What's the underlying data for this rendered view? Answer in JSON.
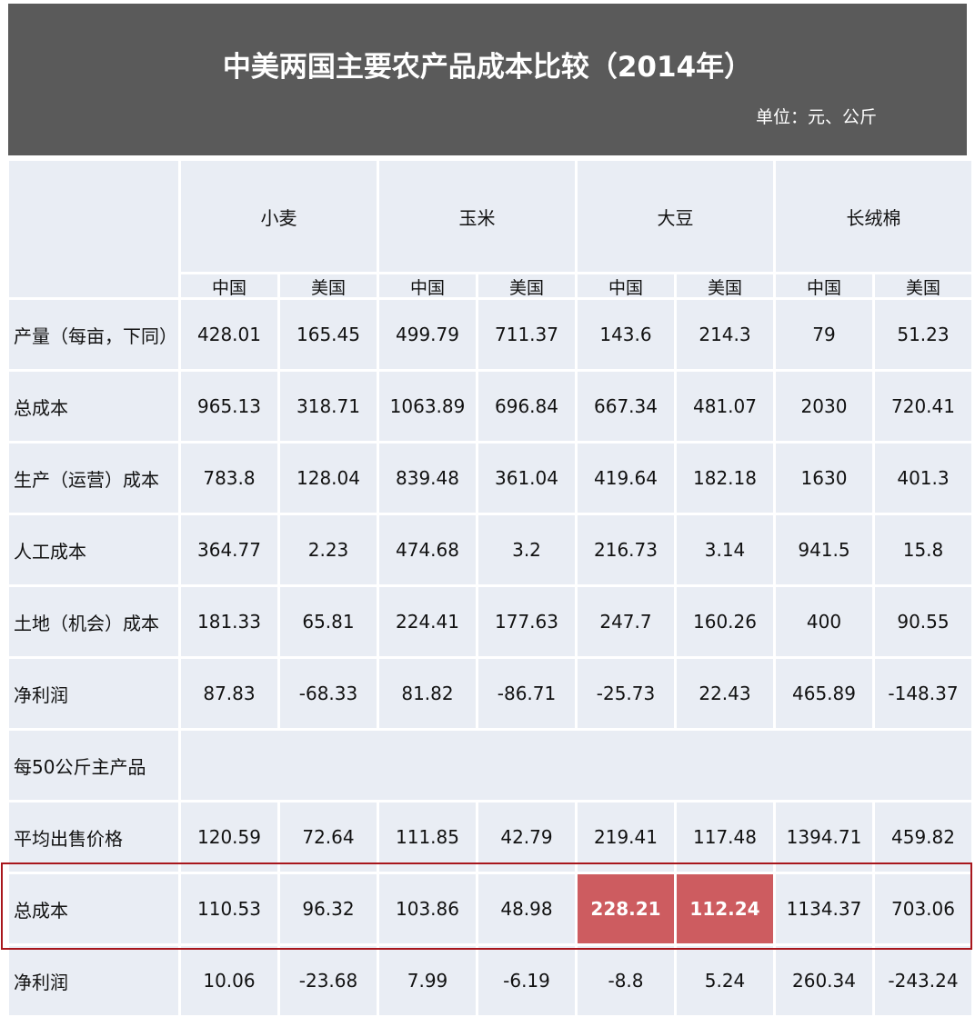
{
  "header": {
    "title": "中美两国主要农产品成本比较（2014年）",
    "unit": "单位：元、公斤"
  },
  "colors": {
    "banner": "#5a5a5a",
    "cell": "#e9edf4",
    "highlight": "#cd5c60",
    "outline": "#a8161c"
  },
  "table": {
    "groups": [
      "小麦",
      "玉米",
      "大豆",
      "长绒棉"
    ],
    "subheaders": [
      "中国",
      "美国",
      "中国",
      "美国",
      "中国",
      "美国",
      "中国",
      "美国"
    ],
    "rows": [
      {
        "label": "产量（每亩，下同）",
        "values": [
          "428.01",
          "165.45",
          "499.79",
          "711.37",
          "143.6",
          "214.3",
          "79",
          "51.23"
        ]
      },
      {
        "label": "总成本",
        "values": [
          "965.13",
          "318.71",
          "1063.89",
          "696.84",
          "667.34",
          "481.07",
          "2030",
          "720.41"
        ]
      },
      {
        "label": "生产（运营）成本",
        "values": [
          "783.8",
          "128.04",
          "839.48",
          "361.04",
          "419.64",
          "182.18",
          "1630",
          "401.3"
        ]
      },
      {
        "label": "人工成本",
        "values": [
          "364.77",
          "2.23",
          "474.68",
          "3.2",
          "216.73",
          "3.14",
          "941.5",
          "15.8"
        ]
      },
      {
        "label": "土地（机会）成本",
        "values": [
          "181.33",
          "65.81",
          "224.41",
          "177.63",
          "247.7",
          "160.26",
          "400",
          "90.55"
        ]
      },
      {
        "label": "净利润",
        "values": [
          "87.83",
          "-68.33",
          "81.82",
          "-86.71",
          "-25.73",
          "22.43",
          "465.89",
          "-148.37"
        ]
      },
      {
        "label": "每50公斤主产品",
        "section": true
      },
      {
        "label": "平均出售价格",
        "values": [
          "120.59",
          "72.64",
          "111.85",
          "42.79",
          "219.41",
          "117.48",
          "1394.71",
          "459.82"
        ]
      },
      {
        "label": "总成本",
        "values": [
          "110.53",
          "96.32",
          "103.86",
          "48.98",
          "228.21",
          "112.24",
          "1134.37",
          "703.06"
        ],
        "highlighted": [
          4,
          5
        ],
        "outlined": true
      },
      {
        "label": "净利润",
        "values": [
          "10.06",
          "-23.68",
          "7.99",
          "-6.19",
          "-8.8",
          "5.24",
          "260.34",
          "-243.24"
        ]
      }
    ]
  }
}
